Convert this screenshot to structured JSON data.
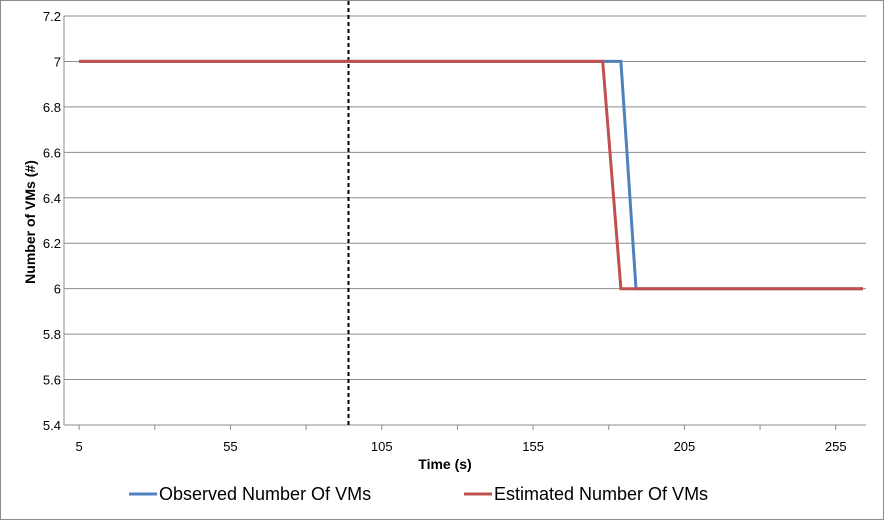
{
  "chart_data": {
    "type": "line",
    "title": "",
    "xlabel": "Time (s)",
    "ylabel": "Number of VMs (#)",
    "xlim": [
      0,
      265
    ],
    "ylim": [
      5.4,
      7.2
    ],
    "x_ticks": [
      5,
      55,
      105,
      155,
      205,
      255
    ],
    "y_ticks": [
      5.4,
      5.6,
      5.8,
      6,
      6.2,
      6.4,
      6.6,
      6.8,
      7,
      7.2
    ],
    "grid": "horizontal",
    "legend": "bottom",
    "vertical_marker": {
      "x": 94,
      "style": "dashed",
      "color": "#000000"
    },
    "series": [
      {
        "name": "Observed Number Of VMs",
        "color": "#4f81bd",
        "points": [
          [
            5,
            7
          ],
          [
            184,
            7
          ],
          [
            189,
            6
          ],
          [
            264,
            6
          ]
        ]
      },
      {
        "name": "Estimated Number Of VMs",
        "color": "#c0504d",
        "points": [
          [
            5,
            7
          ],
          [
            178,
            7
          ],
          [
            184,
            6
          ],
          [
            264,
            6
          ]
        ]
      }
    ]
  }
}
